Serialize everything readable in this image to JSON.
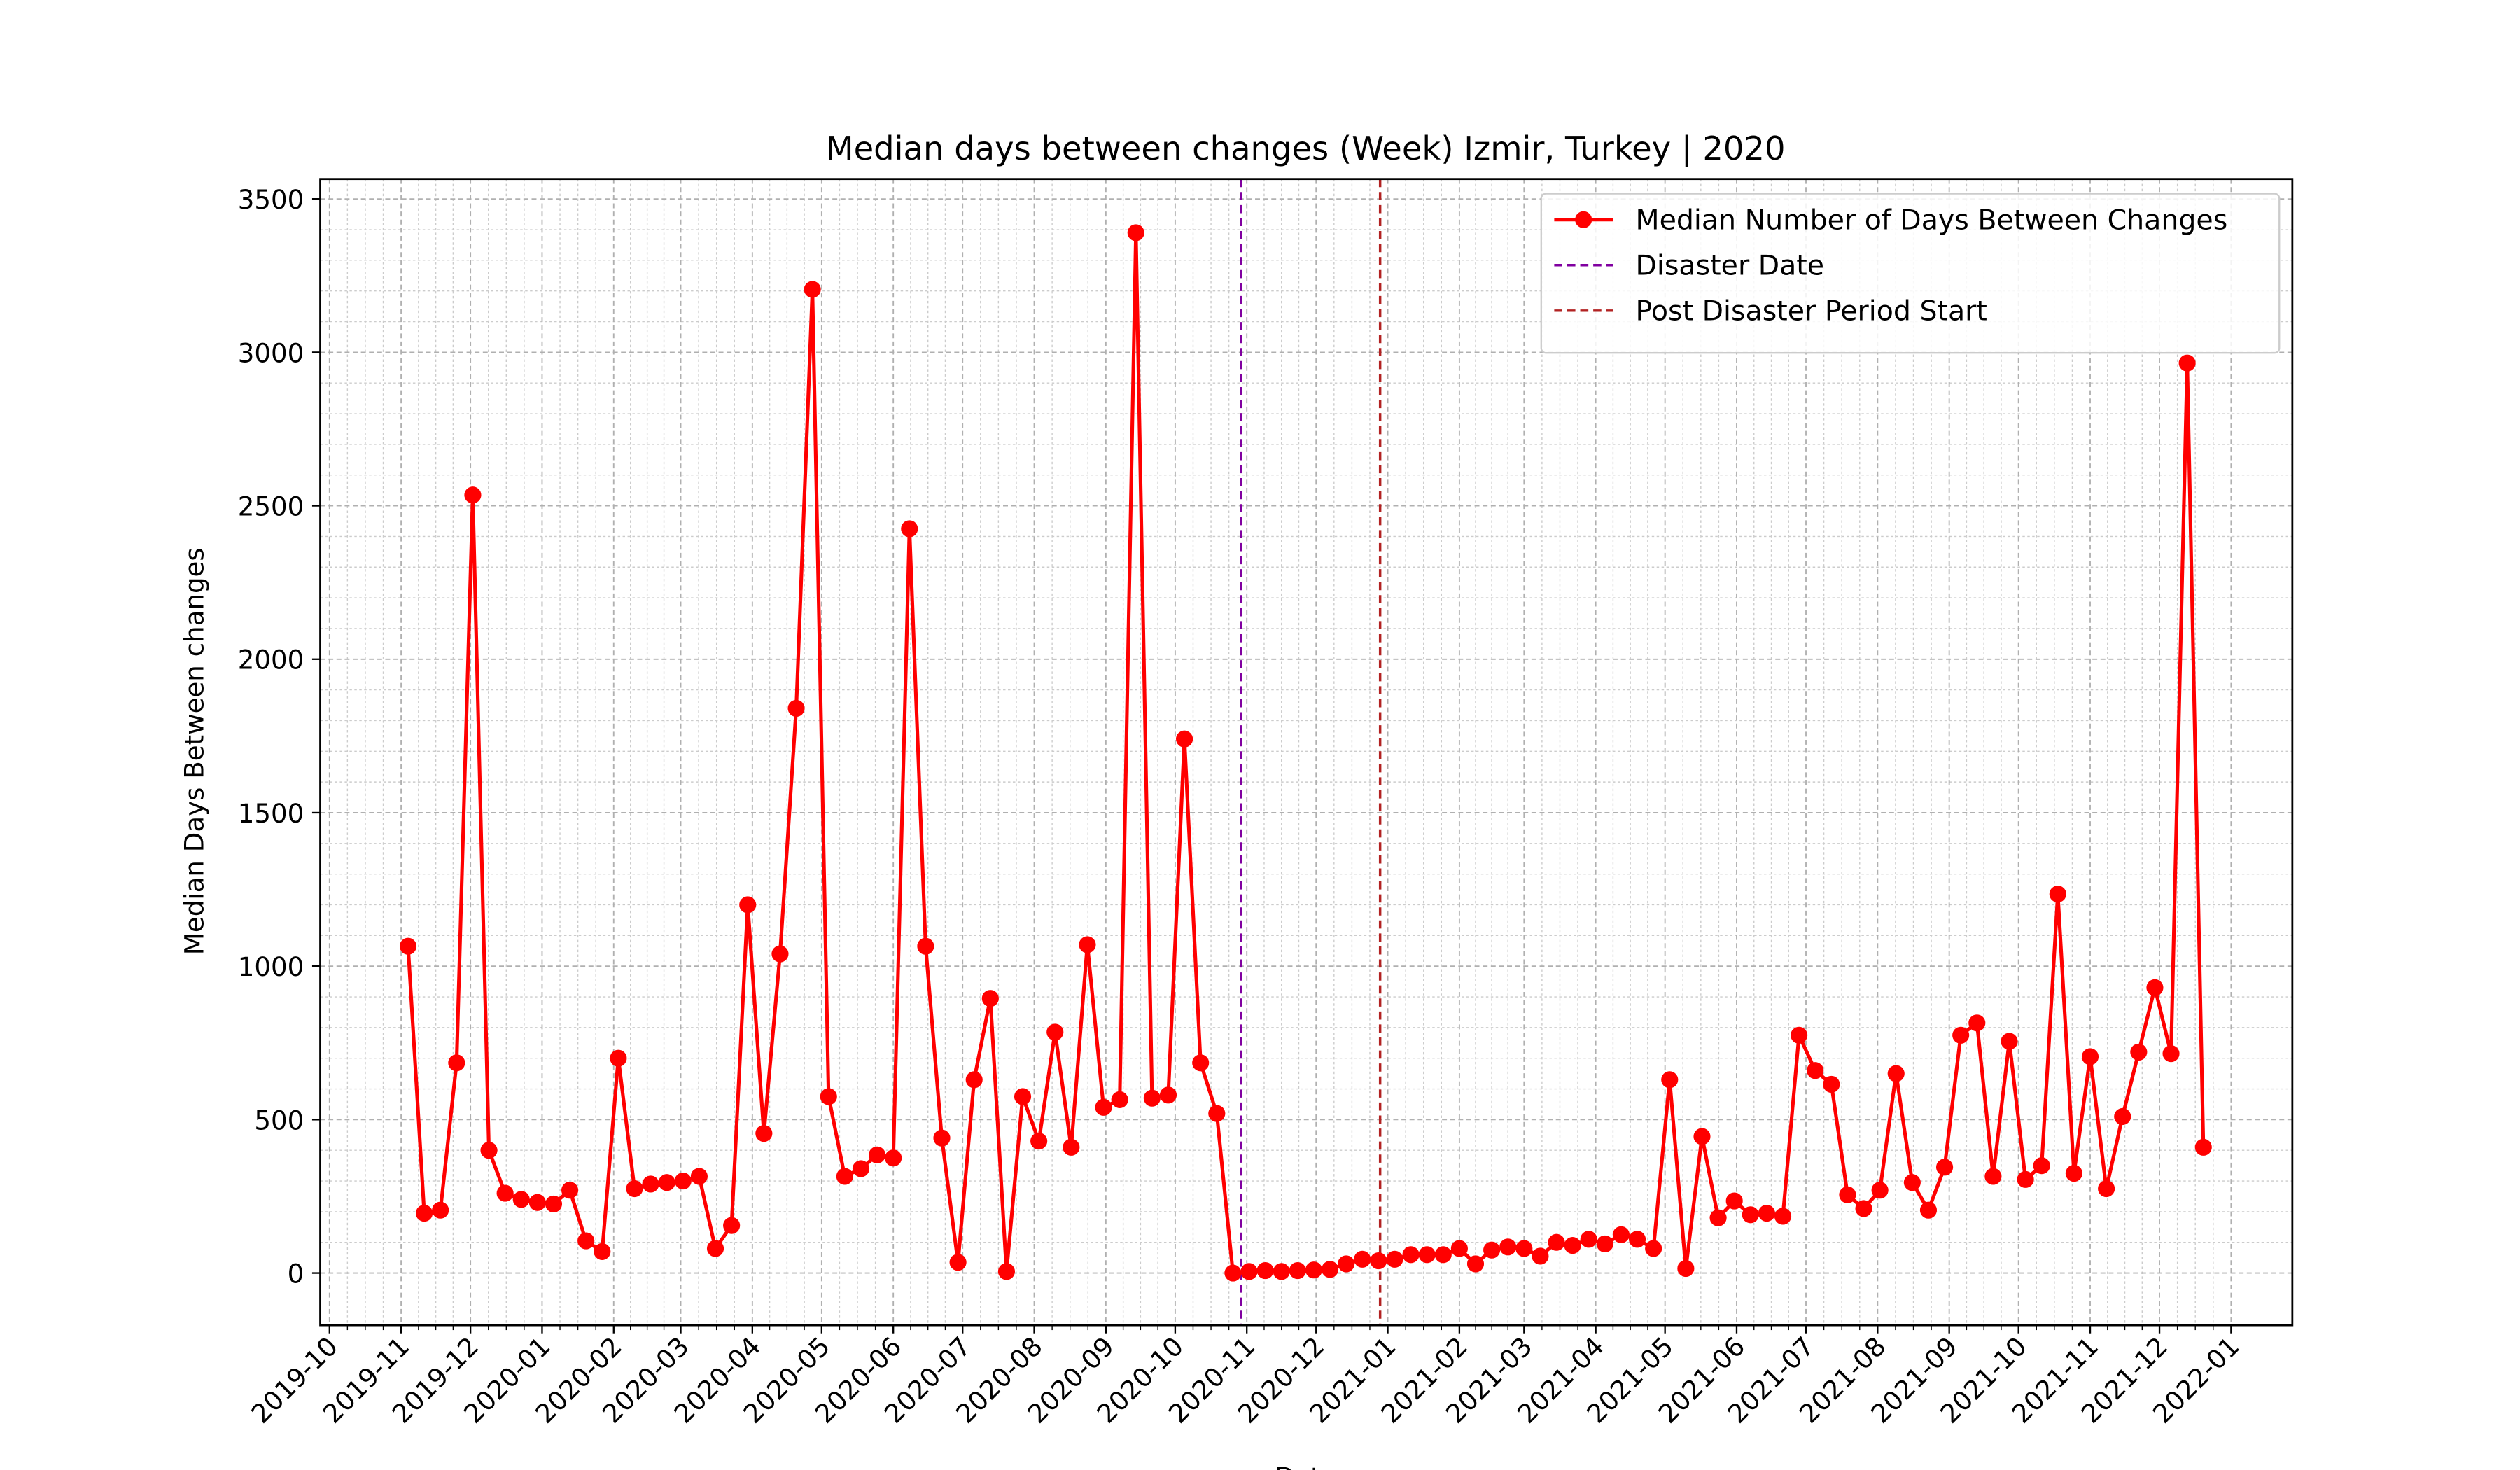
{
  "chart_data": {
    "type": "line",
    "title": "Median days between changes (Week) Izmir, Turkey | 2020",
    "xlabel": "Date",
    "ylabel": "Median Days Between changes",
    "categories": [
      null,
      null,
      null,
      null,
      null,
      null,
      null,
      null,
      null,
      null,
      null,
      null,
      null,
      null,
      null,
      null,
      null,
      null,
      null,
      null,
      null,
      null,
      null,
      null,
      null,
      null,
      null,
      null,
      null,
      null,
      null,
      null,
      null,
      null,
      null,
      null,
      null,
      null,
      null,
      null,
      null,
      null,
      null,
      null,
      null,
      null,
      null,
      null,
      null,
      null,
      null,
      null,
      null,
      null,
      null,
      null,
      null,
      null,
      null,
      null,
      null,
      null,
      null,
      null,
      null,
      null,
      null,
      null,
      null,
      null,
      null,
      null,
      null,
      null,
      null,
      null,
      null,
      null,
      null,
      null,
      null,
      null,
      null,
      null,
      null,
      null,
      null,
      null,
      null,
      null,
      null,
      null,
      null,
      null,
      null,
      null,
      null,
      null,
      null,
      null,
      null,
      null,
      null,
      null,
      null,
      null,
      null,
      null,
      null,
      null,
      null,
      null
    ],
    "series": [
      {
        "name": "Median Number of Days Between Changes",
        "color": "#ff0000",
        "values": [
          1065,
          195,
          205,
          685,
          2535,
          400,
          260,
          240,
          230,
          225,
          270,
          105,
          70,
          700,
          275,
          290,
          295,
          300,
          315,
          80,
          155,
          1200,
          455,
          1040,
          1840,
          3205,
          575,
          315,
          340,
          385,
          375,
          2425,
          1065,
          440,
          35,
          630,
          895,
          5,
          575,
          430,
          785,
          410,
          1070,
          540,
          565,
          3390,
          570,
          580,
          1740,
          685,
          520,
          0,
          5,
          8,
          5,
          8,
          10,
          12,
          30,
          45,
          40,
          45,
          60,
          60,
          60,
          80,
          30,
          75,
          85,
          80,
          55,
          100,
          90,
          110,
          95,
          125,
          110,
          80,
          630,
          15,
          445,
          180,
          235,
          190,
          195,
          185,
          775,
          660,
          615,
          255,
          210,
          270,
          650,
          295,
          205,
          345,
          775,
          815,
          315,
          755,
          305,
          350,
          1235,
          325,
          705,
          275,
          510,
          720,
          930,
          715,
          2965,
          410
        ]
      }
    ],
    "vlines": [
      {
        "name": "Disaster Date",
        "value": 51.5,
        "color": "#8000a0"
      },
      {
        "name": "Post Disaster Period Start",
        "value": 60.1,
        "color": "#b22222"
      }
    ],
    "xlim": [
      -5.43,
      116.5
    ],
    "xticks": [
      {
        "value": -4.857,
        "label": "2019-10"
      },
      {
        "value": -0.429,
        "label": "2019-11"
      },
      {
        "value": 3.857,
        "label": "2019-12"
      },
      {
        "value": 8.286,
        "label": "2020-01"
      },
      {
        "value": 12.714,
        "label": "2020-02"
      },
      {
        "value": 16.857,
        "label": "2020-03"
      },
      {
        "value": 21.286,
        "label": "2020-04"
      },
      {
        "value": 25.571,
        "label": "2020-05"
      },
      {
        "value": 30,
        "label": "2020-06"
      },
      {
        "value": 34.286,
        "label": "2020-07"
      },
      {
        "value": 38.714,
        "label": "2020-08"
      },
      {
        "value": 43.143,
        "label": "2020-09"
      },
      {
        "value": 47.429,
        "label": "2020-10"
      },
      {
        "value": 51.857,
        "label": "2020-11"
      },
      {
        "value": 56.143,
        "label": "2020-12"
      },
      {
        "value": 60.571,
        "label": "2021-01"
      },
      {
        "value": 65,
        "label": "2021-02"
      },
      {
        "value": 69,
        "label": "2021-03"
      },
      {
        "value": 73.429,
        "label": "2021-04"
      },
      {
        "value": 77.714,
        "label": "2021-05"
      },
      {
        "value": 82.143,
        "label": "2021-06"
      },
      {
        "value": 86.429,
        "label": "2021-07"
      },
      {
        "value": 90.857,
        "label": "2021-08"
      },
      {
        "value": 95.286,
        "label": "2021-09"
      },
      {
        "value": 99.571,
        "label": "2021-10"
      },
      {
        "value": 104,
        "label": "2021-11"
      },
      {
        "value": 108.286,
        "label": "2021-12"
      },
      {
        "value": 112.714,
        "label": "2022-01"
      }
    ],
    "ylim": [
      -170,
      3565
    ],
    "yticks": [
      0,
      500,
      1000,
      1500,
      2000,
      2500,
      3000,
      3500
    ],
    "grid": true,
    "legend": "upper right"
  }
}
